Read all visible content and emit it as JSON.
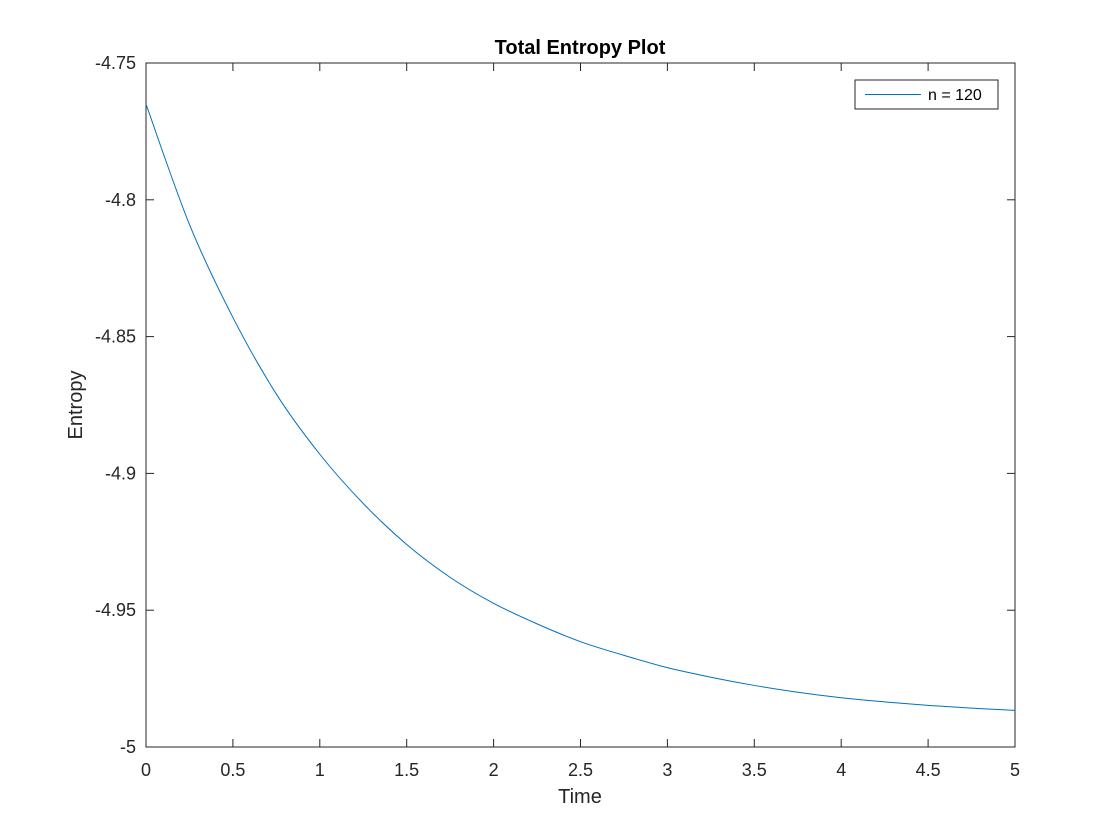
{
  "chart_data": {
    "type": "line",
    "title": "Total Entropy Plot",
    "xlabel": "Time",
    "ylabel": "Entropy",
    "xlim": [
      0,
      5
    ],
    "ylim": [
      -5,
      -4.75
    ],
    "xticks": [
      0,
      0.5,
      1,
      1.5,
      2,
      2.5,
      3,
      3.5,
      4,
      4.5,
      5
    ],
    "xtick_labels": [
      "0",
      "0.5",
      "1",
      "1.5",
      "2",
      "2.5",
      "3",
      "3.5",
      "4",
      "4.5",
      "5"
    ],
    "yticks": [
      -5,
      -4.95,
      -4.9,
      -4.85,
      -4.8,
      -4.75
    ],
    "ytick_labels": [
      "-5",
      "-4.95",
      "-4.9",
      "-4.85",
      "-4.8",
      "-4.75"
    ],
    "grid": false,
    "legend_position": "top-right",
    "series": [
      {
        "name": "n = 120",
        "color": "#0072bd",
        "x": [
          0,
          0.25,
          0.5,
          0.75,
          1,
          1.25,
          1.5,
          1.75,
          2,
          2.25,
          2.5,
          2.75,
          3,
          3.25,
          3.5,
          3.75,
          4,
          4.25,
          4.5,
          4.75,
          5
        ],
        "y": [
          -4.765,
          -4.809,
          -4.843,
          -4.871,
          -4.893,
          -4.911,
          -4.926,
          -4.938,
          -4.9475,
          -4.955,
          -4.9615,
          -4.9665,
          -4.971,
          -4.9745,
          -4.9775,
          -4.98,
          -4.982,
          -4.9835,
          -4.9848,
          -4.9858,
          -4.9866
        ]
      }
    ]
  }
}
